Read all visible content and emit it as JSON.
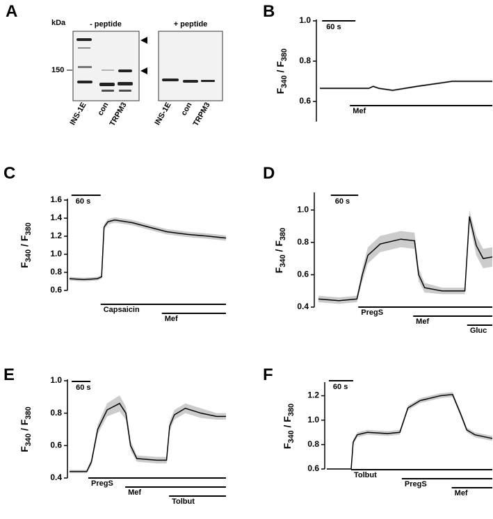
{
  "blot": {
    "panel": "A",
    "unit": "kDa",
    "marker": "150",
    "groups": [
      {
        "name": "- peptide",
        "lanes": [
          "INS-1E",
          "con",
          "TRPM3"
        ]
      },
      {
        "name": "+ peptide",
        "lanes": [
          "INS-1E",
          "con",
          "TRPM3"
        ]
      }
    ]
  },
  "chart_data": [
    {
      "type": "line",
      "panel": "B",
      "ylabel_parts": [
        "F",
        "340",
        " / F",
        "380"
      ],
      "x": [
        0,
        50,
        88,
        96,
        106,
        131,
        175,
        238,
        310
      ],
      "values": [
        0.665,
        0.665,
        0.665,
        0.675,
        0.665,
        0.655,
        0.675,
        0.7,
        0.7
      ],
      "errors": [
        0.005,
        0.005,
        0.005,
        0.005,
        0.005,
        0.005,
        0.005,
        0.005,
        0.005
      ],
      "color": "#000000",
      "band_color": "#cccccc",
      "xlim": [
        0,
        310
      ],
      "ylim": [
        0.5,
        1.0
      ],
      "yticks": [
        0.6,
        0.8,
        {
          "value": 1.0,
          "label": "1.0"
        }
      ],
      "scalebar": {
        "start": 4,
        "value": 60,
        "label": "60 s"
      },
      "treatments": [
        {
          "label": "Mef",
          "start": 54,
          "end": 310
        }
      ]
    },
    {
      "type": "line",
      "panel": "C",
      "ylabel_parts": [
        "F",
        "340",
        " / F",
        "380"
      ],
      "x": [
        0,
        29,
        57,
        66,
        71,
        79,
        93,
        129,
        164,
        200,
        243,
        286,
        322
      ],
      "values": [
        0.73,
        0.72,
        0.73,
        0.75,
        1.3,
        1.36,
        1.38,
        1.35,
        1.3,
        1.25,
        1.22,
        1.2,
        1.18
      ],
      "errors": [
        0.02,
        0.02,
        0.02,
        0.02,
        0.03,
        0.03,
        0.03,
        0.03,
        0.03,
        0.03,
        0.03,
        0.03,
        0.03
      ],
      "color": "#000000",
      "band_color": "#cccccc",
      "xlim": [
        0,
        322
      ],
      "ylim": [
        0.6,
        1.6
      ],
      "yticks": [
        0.6,
        0.8,
        {
          "value": 1.0,
          "label": "1.0"
        },
        1.2,
        1.4,
        1.6
      ],
      "scalebar": {
        "start": 4,
        "value": 60,
        "label": "60 s"
      },
      "treatments": [
        {
          "label": "Capsaicin",
          "start": 64,
          "end": 322
        },
        {
          "label": "Mef",
          "start": 190,
          "end": 322
        }
      ]
    },
    {
      "type": "line",
      "panel": "D",
      "ylabel_parts": [
        "F",
        "340",
        " / F",
        "380"
      ],
      "x": [
        0,
        45,
        84,
        96,
        108,
        135,
        180,
        210,
        219,
        232,
        270,
        320,
        330,
        345,
        360,
        380
      ],
      "values": [
        0.45,
        0.44,
        0.45,
        0.6,
        0.72,
        0.79,
        0.82,
        0.81,
        0.6,
        0.52,
        0.5,
        0.5,
        0.96,
        0.78,
        0.7,
        0.71
      ],
      "errors": [
        0.02,
        0.02,
        0.02,
        0.04,
        0.05,
        0.05,
        0.05,
        0.05,
        0.04,
        0.03,
        0.02,
        0.02,
        0.04,
        0.06,
        0.06,
        0.06
      ],
      "color": "#000000",
      "band_color": "#cccccc",
      "xlim": [
        0,
        380
      ],
      "ylim": [
        0.4,
        1.1
      ],
      "yticks": [
        0.4,
        0.6,
        0.8,
        {
          "value": 1.0,
          "label": "1.0"
        }
      ],
      "scalebar": {
        "start": 27,
        "value": 60,
        "label": "60 s"
      },
      "treatments": [
        {
          "label": "PregS",
          "start": 87,
          "end": 380
        },
        {
          "label": "Mef",
          "start": 207,
          "end": 380
        },
        {
          "label": "Gluc",
          "start": 325,
          "end": 380
        }
      ]
    },
    {
      "type": "line",
      "panel": "E",
      "ylabel_parts": [
        "F",
        "340",
        " / F",
        "380"
      ],
      "x": [
        0,
        55,
        70,
        90,
        120,
        160,
        180,
        195,
        215,
        280,
        310,
        320,
        335,
        370,
        420,
        470,
        500
      ],
      "values": [
        0.44,
        0.44,
        0.5,
        0.7,
        0.82,
        0.86,
        0.8,
        0.6,
        0.52,
        0.51,
        0.51,
        0.72,
        0.79,
        0.83,
        0.8,
        0.78,
        0.78
      ],
      "errors": [
        0.01,
        0.01,
        0.02,
        0.03,
        0.04,
        0.05,
        0.04,
        0.03,
        0.02,
        0.02,
        0.02,
        0.03,
        0.03,
        0.03,
        0.03,
        0.02,
        0.02
      ],
      "color": "#000000",
      "band_color": "#cccccc",
      "xlim": [
        0,
        500
      ],
      "ylim": [
        0.4,
        1.0
      ],
      "yticks": [
        0.4,
        0.6,
        0.8,
        {
          "value": 1.0,
          "label": "1.0"
        }
      ],
      "scalebar": {
        "start": 7,
        "value": 60,
        "label": "60 s"
      },
      "treatments": [
        {
          "label": "PregS",
          "start": 60,
          "end": 500
        },
        {
          "label": "Mef",
          "start": 178,
          "end": 500
        },
        {
          "label": "Tolbut",
          "start": 318,
          "end": 500
        }
      ]
    },
    {
      "type": "line",
      "panel": "F",
      "ylabel_parts": [
        "F",
        "340",
        " / F",
        "380"
      ],
      "x": [
        0,
        60,
        65,
        75,
        100,
        150,
        180,
        200,
        230,
        280,
        310,
        330,
        345,
        365,
        408
      ],
      "values": [
        0.6,
        0.6,
        0.82,
        0.88,
        0.9,
        0.89,
        0.9,
        1.1,
        1.16,
        1.2,
        1.21,
        1.05,
        0.92,
        0.88,
        0.85
      ],
      "errors": [
        0.005,
        0.005,
        0.02,
        0.02,
        0.02,
        0.02,
        0.02,
        0.02,
        0.02,
        0.02,
        0.02,
        0.02,
        0.02,
        0.02,
        0.02
      ],
      "color": "#000000",
      "band_color": "#cccccc",
      "xlim": [
        0,
        408
      ],
      "ylim": [
        0.6,
        1.3
      ],
      "yticks": [
        0.6,
        0.8,
        {
          "value": 1.0,
          "label": "1.0"
        },
        1.2
      ],
      "scalebar": {
        "start": 5,
        "value": 60,
        "label": "60 s"
      },
      "treatments": [
        {
          "label": "Tolbut",
          "start": 60,
          "end": 408
        },
        {
          "label": "PregS",
          "start": 185,
          "end": 408
        },
        {
          "label": "Mef",
          "start": 308,
          "end": 408
        }
      ]
    }
  ]
}
